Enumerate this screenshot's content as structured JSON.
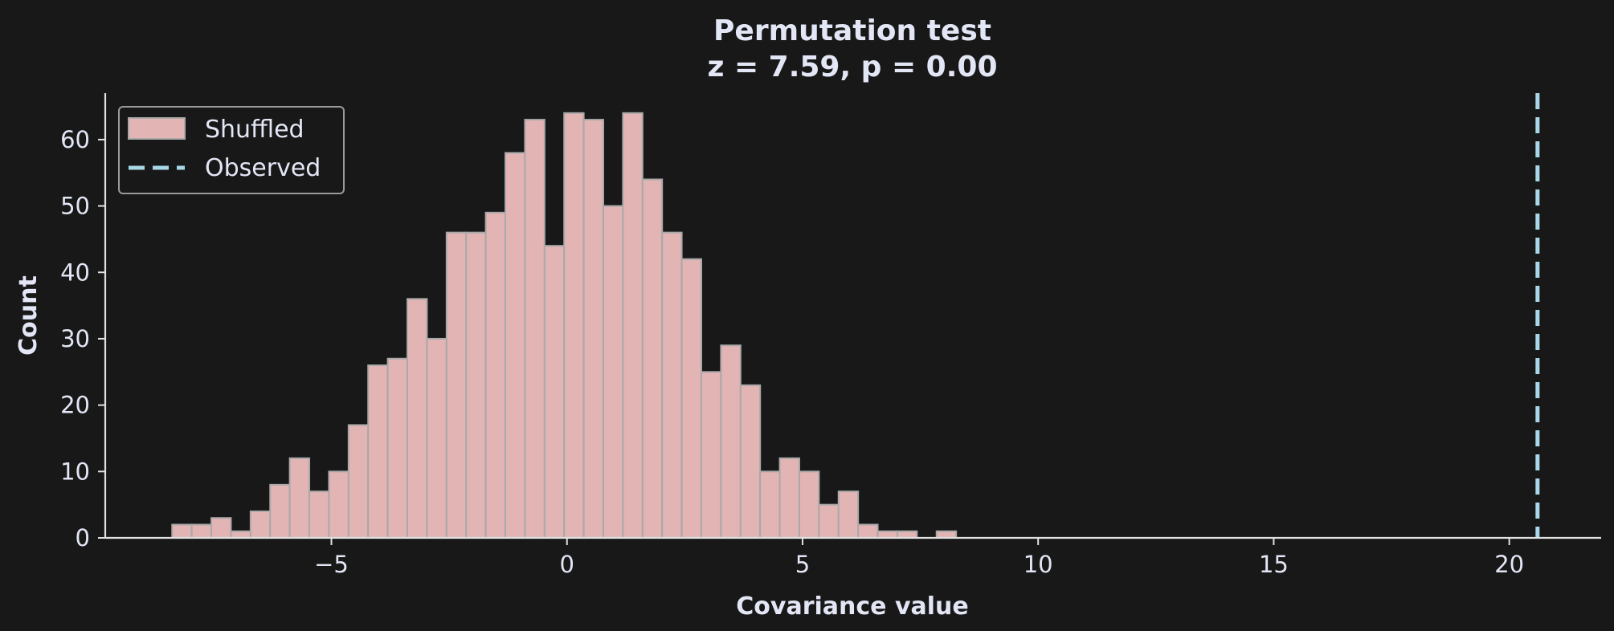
{
  "chart_data": {
    "type": "bar",
    "title": "Permutation test",
    "subtitle": "z = 7.59, p = 0.00",
    "xlabel": "Covariance value",
    "ylabel": "Count",
    "xlim": [
      -9.8,
      21.95
    ],
    "ylim": [
      0,
      67
    ],
    "xticks": [
      -5,
      0,
      5,
      10,
      15,
      20
    ],
    "xtick_labels": [
      "−5",
      "0",
      "5",
      "10",
      "15",
      "20"
    ],
    "yticks": [
      0,
      10,
      20,
      30,
      40,
      50,
      60
    ],
    "ytick_labels": [
      "0",
      "10",
      "20",
      "30",
      "40",
      "50",
      "60"
    ],
    "grid": false,
    "legend_position": "top-left",
    "series": [
      {
        "name": "Shuffled",
        "kind": "histogram",
        "bin_start": -8.38,
        "bin_width": 0.416,
        "counts": [
          2,
          2,
          3,
          1,
          4,
          8,
          12,
          7,
          10,
          17,
          26,
          27,
          36,
          30,
          46,
          46,
          49,
          58,
          63,
          44,
          64,
          63,
          50,
          64,
          54,
          46,
          42,
          25,
          29,
          23,
          10,
          12,
          10,
          5,
          7,
          2,
          1,
          1,
          0,
          1
        ]
      },
      {
        "name": "Observed",
        "kind": "vline",
        "x": 20.6
      }
    ],
    "colors": {
      "background": "#181818",
      "bar_fill": "#e3b4b4",
      "bar_edge": "#a9a9a9",
      "observed_line": "#a8d8e8",
      "axis": "#e0e0e0",
      "text": "#e2e6f5",
      "legend_border": "#9a9a9a"
    }
  }
}
